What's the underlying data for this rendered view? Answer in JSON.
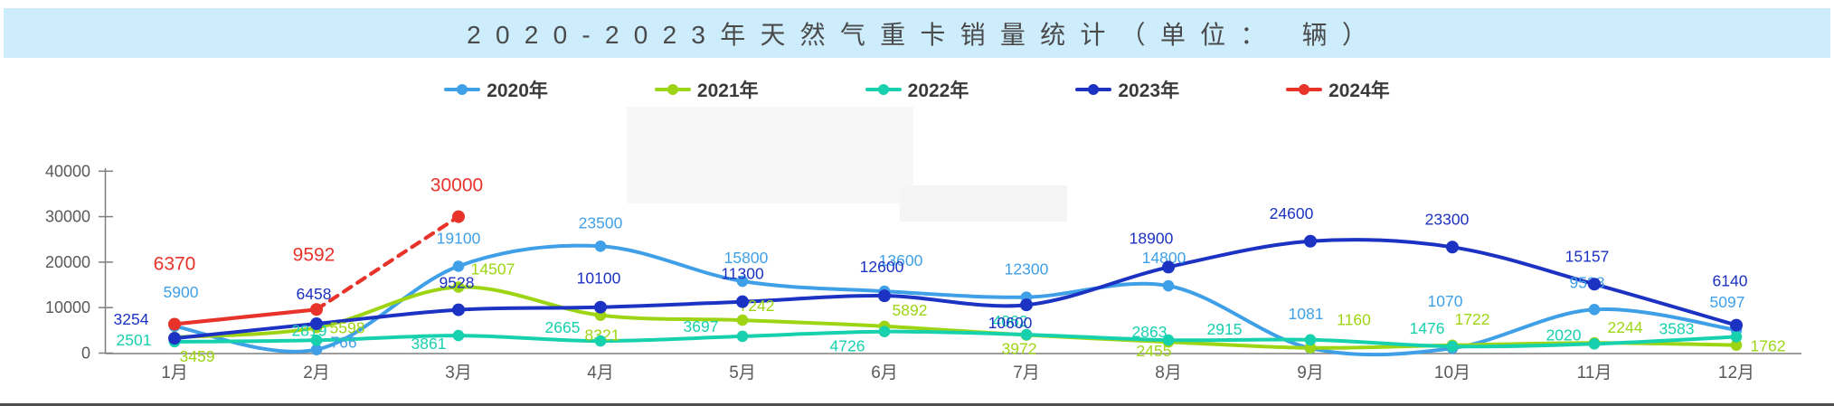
{
  "title": {
    "text": "2020-2023年天然气重卡销量统计（单位： 辆）"
  },
  "chart_data": {
    "type": "line",
    "title": "2020-2023年天然气重卡销量统计（单位： 辆）",
    "categories": [
      "1月",
      "2月",
      "3月",
      "4月",
      "5月",
      "6月",
      "7月",
      "8月",
      "9月",
      "10月",
      "11月",
      "12月"
    ],
    "series": [
      {
        "name": "2020年",
        "color": "#3fa0e8",
        "values": [
          5900,
          766,
          19100,
          23500,
          15800,
          13600,
          12300,
          14800,
          1081,
          1070,
          9588,
          5097
        ]
      },
      {
        "name": "2021年",
        "color": "#9dd514",
        "values": [
          3459,
          5598,
          14507,
          8321,
          7242,
          5892,
          3972,
          2455,
          1160,
          1722,
          2244,
          1762
        ]
      },
      {
        "name": "2022年",
        "color": "#17d1ae",
        "values": [
          2501,
          2819,
          3861,
          2665,
          3697,
          4726,
          4062,
          2863,
          2915,
          1476,
          2020,
          3583
        ]
      },
      {
        "name": "2023年",
        "color": "#1b32c3",
        "values": [
          3254,
          6458,
          9528,
          10100,
          11300,
          12600,
          10600,
          18900,
          24600,
          23300,
          15157,
          6140
        ]
      },
      {
        "name": "2024年",
        "color": "#e8332b",
        "values": [
          6370,
          9592,
          30000,
          null,
          null,
          null,
          null,
          null,
          null,
          null,
          null,
          null
        ],
        "dashed_after_index": 1
      }
    ],
    "xlabel": "",
    "ylabel": "",
    "ylim": [
      0,
      40000
    ],
    "yticks": [
      0,
      10000,
      20000,
      30000,
      40000
    ],
    "grid": false,
    "legend_position": "top"
  }
}
